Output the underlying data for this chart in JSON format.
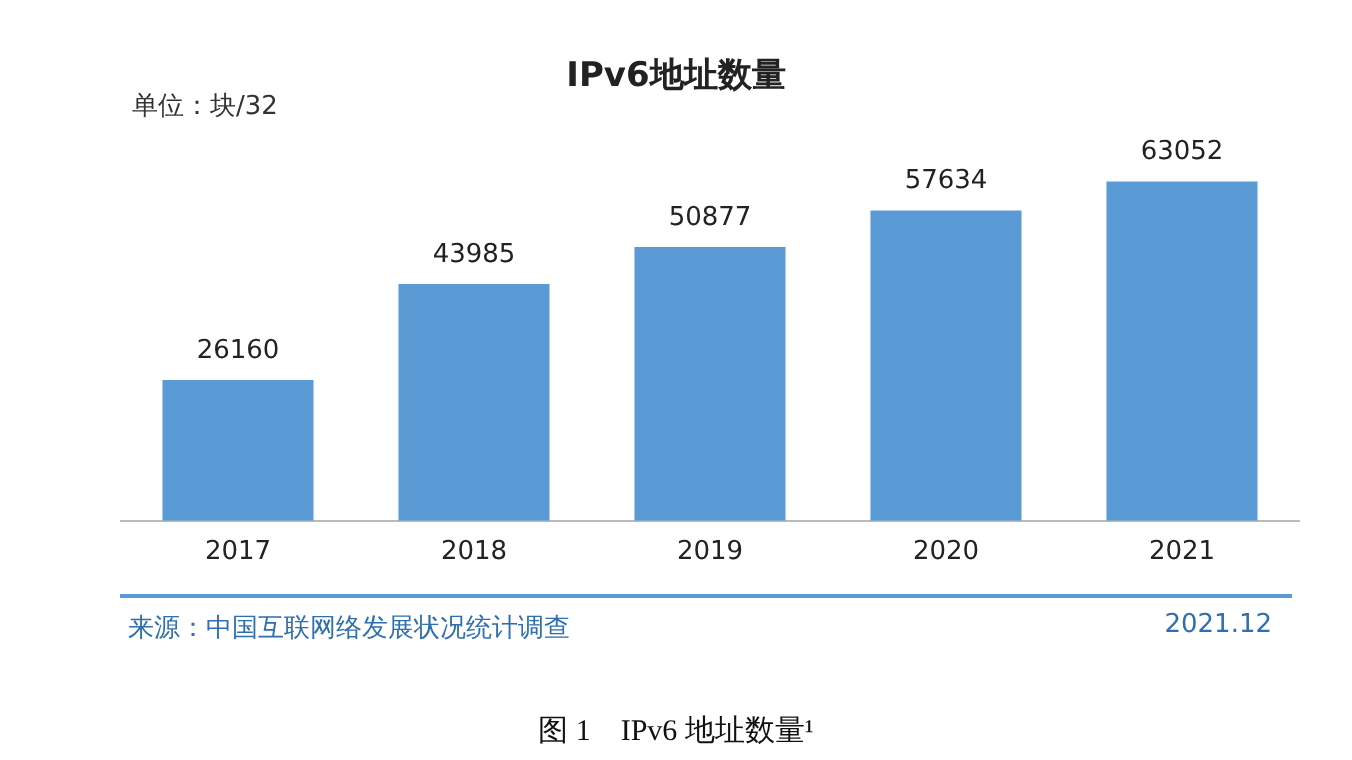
{
  "chart_data": {
    "type": "bar",
    "title": "IPv6地址数量",
    "subtitle": "单位：块/32",
    "categories": [
      "2017",
      "2018",
      "2019",
      "2020",
      "2021"
    ],
    "values": [
      26160,
      43985,
      50877,
      57634,
      63052
    ],
    "color": "#5b9bd5",
    "data_labels": true,
    "grid": false,
    "legend": false,
    "annotations": [
      "来源：中国互联网络发展状况统计调查",
      "2021.12",
      "图 1　IPv6 地址数量¹"
    ]
  }
}
